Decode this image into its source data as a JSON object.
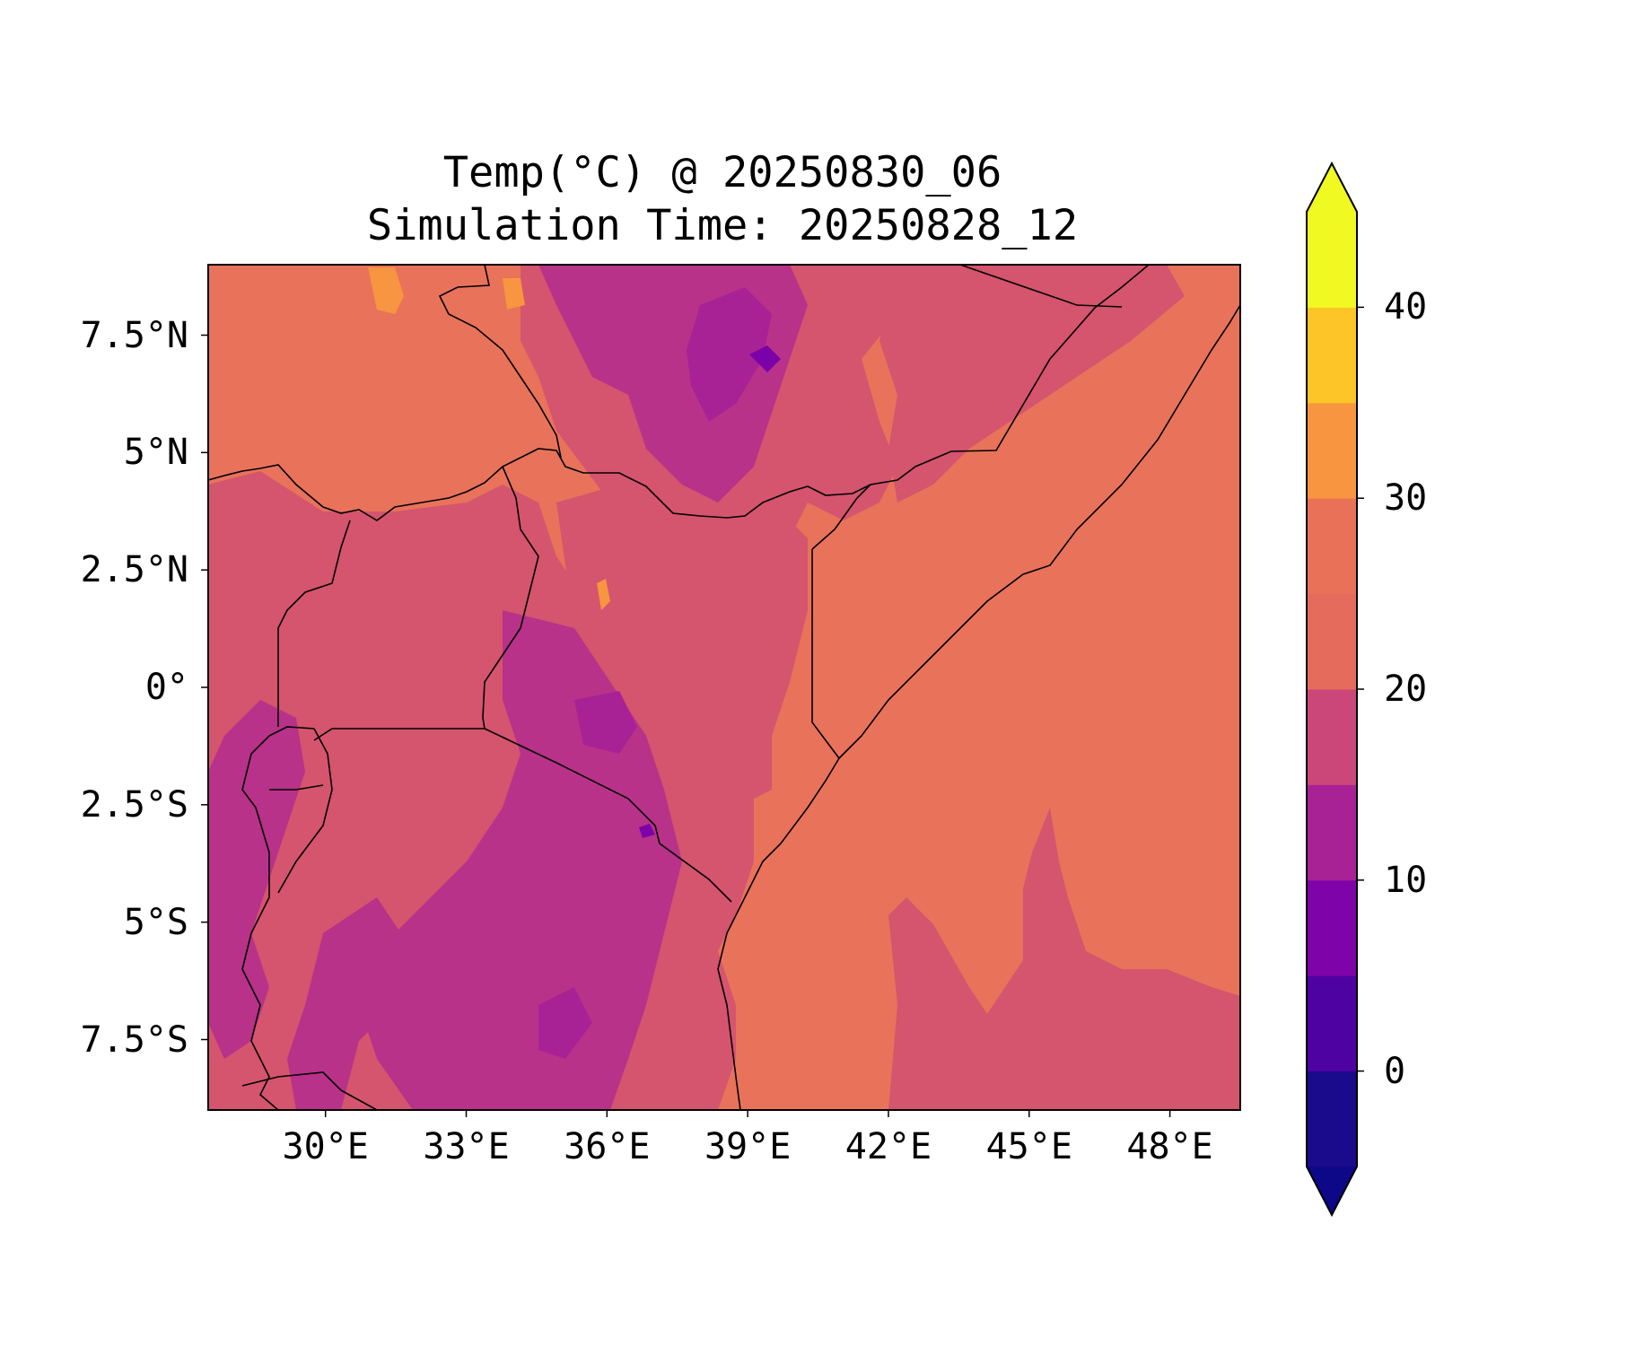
{
  "title": {
    "line1": "Temp(°C) @ 20250830_06",
    "line2": "Simulation Time: 20250828_12"
  },
  "map": {
    "lon_range": [
      27.5,
      49.5
    ],
    "lat_range": [
      -9,
      9
    ],
    "lat_ticks": [
      {
        "lat": 7.5,
        "label": "7.5°N"
      },
      {
        "lat": 5,
        "label": "5°N"
      },
      {
        "lat": 2.5,
        "label": "2.5°N"
      },
      {
        "lat": 0,
        "label": "0°"
      },
      {
        "lat": -2.5,
        "label": "2.5°S"
      },
      {
        "lat": -5,
        "label": "5°S"
      },
      {
        "lat": -7.5,
        "label": "7.5°S"
      }
    ],
    "lon_ticks": [
      {
        "lon": 30,
        "label": "30°E"
      },
      {
        "lon": 33,
        "label": "33°E"
      },
      {
        "lon": 36,
        "label": "36°E"
      },
      {
        "lon": 39,
        "label": "39°E"
      },
      {
        "lon": 42,
        "label": "42°E"
      },
      {
        "lon": 45,
        "label": "45°E"
      },
      {
        "lon": 48,
        "label": "48°E"
      }
    ]
  },
  "colorbar": {
    "levels": [
      -5,
      0,
      5,
      10,
      15,
      20,
      25,
      30,
      35,
      40,
      45
    ],
    "colors": [
      "#1a0a8c",
      "#4e02a2",
      "#7e03a8",
      "#a82296",
      "#cb4679",
      "#e56b5d",
      "#e97157",
      "#f89540",
      "#fdc527",
      "#f0f921"
    ],
    "under_color": "#0d0887",
    "over_color": "#f0f921",
    "ticks": [
      {
        "value": 0,
        "label": "0"
      },
      {
        "value": 10,
        "label": "10"
      },
      {
        "value": 20,
        "label": "20"
      },
      {
        "value": 30,
        "label": "30"
      },
      {
        "value": 40,
        "label": "40"
      }
    ]
  },
  "field_colors": {
    "t10_15": "#a82296",
    "t15_20": "#b83289",
    "t20_25": "#d5546e",
    "t25_30": "#e8735a",
    "t30_35": "#f79540",
    "t5_10": "#7b02a8"
  }
}
